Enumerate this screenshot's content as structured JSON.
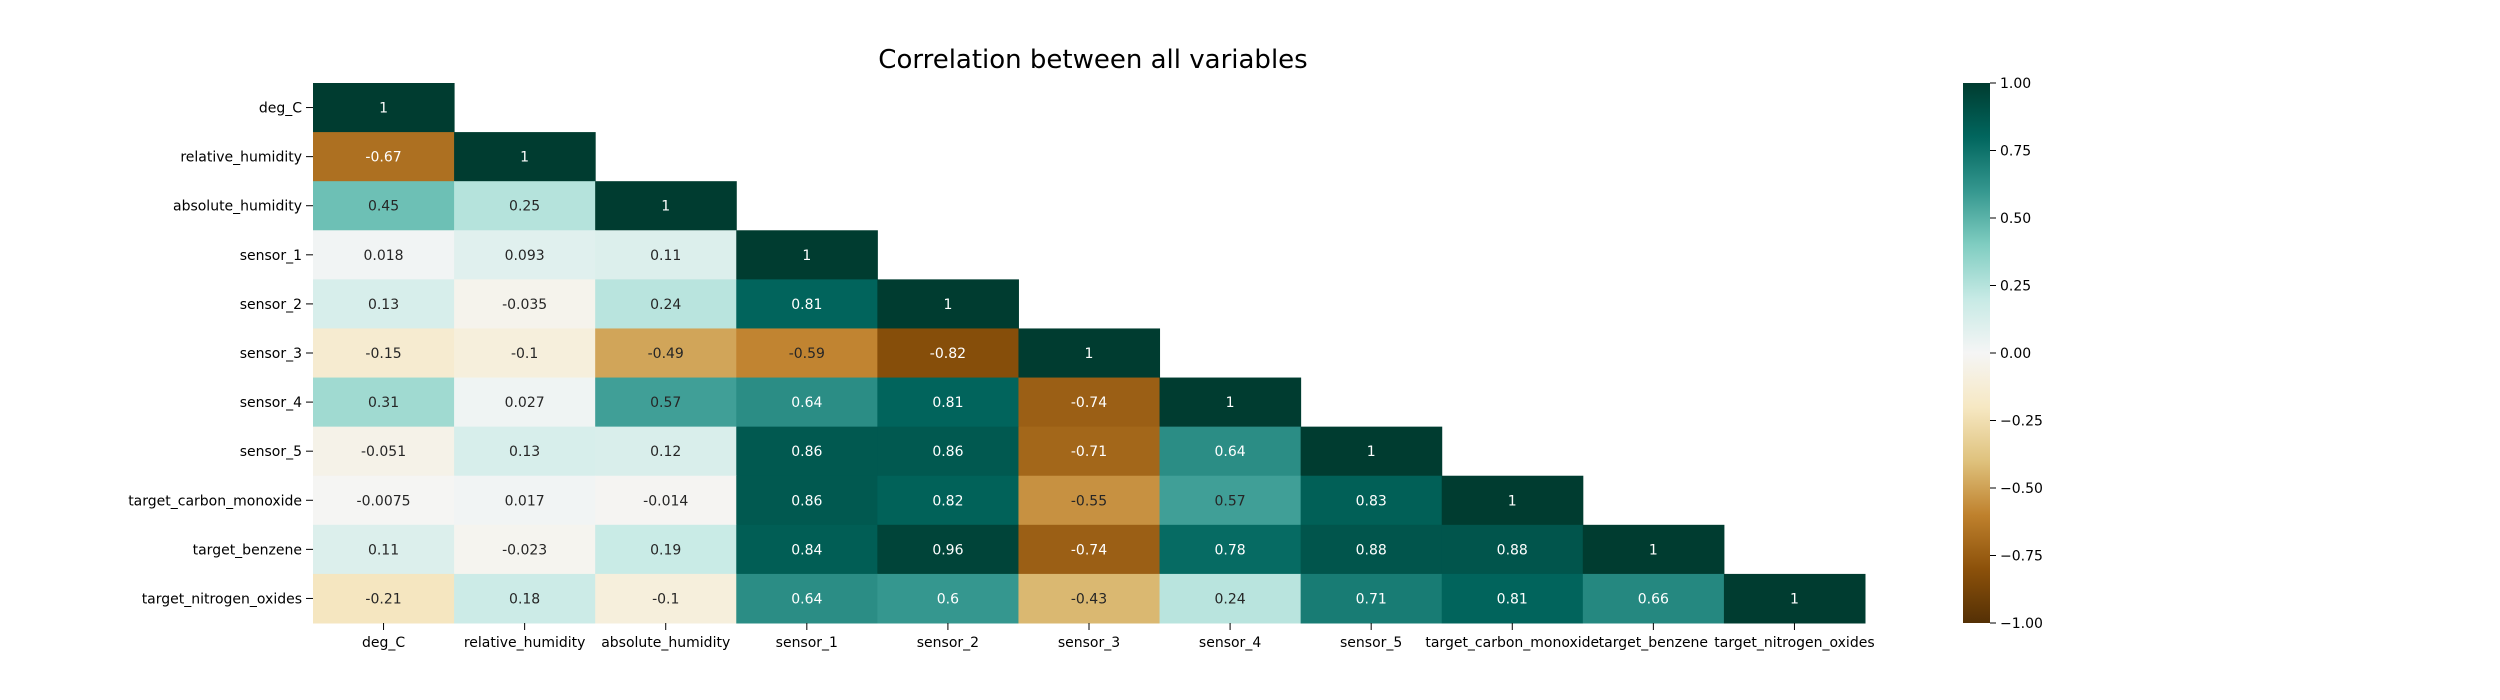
{
  "chart_data": {
    "type": "heatmap",
    "title": "Correlation between all variables",
    "xlabel": "",
    "ylabel": "",
    "variables": [
      "deg_C",
      "relative_humidity",
      "absolute_humidity",
      "sensor_1",
      "sensor_2",
      "sensor_3",
      "sensor_4",
      "sensor_5",
      "target_carbon_monoxide",
      "target_benzene",
      "target_nitrogen_oxides"
    ],
    "matrix_lower_triangle": [
      [
        "1"
      ],
      [
        "-0.67",
        "1"
      ],
      [
        "0.45",
        "0.25",
        "1"
      ],
      [
        "0.018",
        "0.093",
        "0.11",
        "1"
      ],
      [
        "0.13",
        "-0.035",
        "0.24",
        "0.81",
        "1"
      ],
      [
        "-0.15",
        "-0.1",
        "-0.49",
        "-0.59",
        "-0.82",
        "1"
      ],
      [
        "0.31",
        "0.027",
        "0.57",
        "0.64",
        "0.81",
        "-0.74",
        "1"
      ],
      [
        "-0.051",
        "0.13",
        "0.12",
        "0.86",
        "0.86",
        "-0.71",
        "0.64",
        "1"
      ],
      [
        "-0.0075",
        "0.017",
        "-0.014",
        "0.86",
        "0.82",
        "-0.55",
        "0.57",
        "0.83",
        "1"
      ],
      [
        "0.11",
        "-0.023",
        "0.19",
        "0.84",
        "0.96",
        "-0.74",
        "0.78",
        "0.88",
        "0.88",
        "1"
      ],
      [
        "-0.21",
        "0.18",
        "-0.1",
        "0.64",
        "0.6",
        "-0.43",
        "0.24",
        "0.71",
        "0.81",
        "0.66",
        "1"
      ]
    ],
    "value_range": [
      -1,
      1
    ],
    "mask": "upper triangle hidden",
    "colormap": "BrBG",
    "colorbar": {
      "ticks": [
        "1.00",
        "0.75",
        "0.50",
        "0.25",
        "0.00",
        "−0.25",
        "−0.50",
        "−0.75",
        "−1.00"
      ],
      "tick_values": [
        1,
        0.75,
        0.5,
        0.25,
        0,
        -0.25,
        -0.5,
        -0.75,
        -1
      ],
      "placement": "right"
    },
    "colors": {
      "colormap_stops": [
        "#543005",
        "#8c510a",
        "#bf812d",
        "#dfc27d",
        "#f6e8c3",
        "#f5f5f5",
        "#c7eae5",
        "#80cdc1",
        "#35978f",
        "#01665e",
        "#003c30"
      ],
      "text_light": "#ffffff",
      "text_dark": "#262626"
    }
  }
}
